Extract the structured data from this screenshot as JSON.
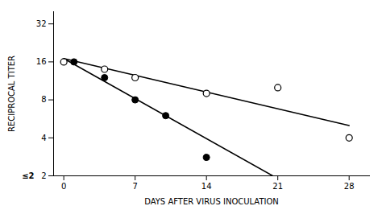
{
  "chart_data": {
    "type": "scatter",
    "xlabel": "DAYS AFTER VIRUS INOCULATION",
    "ylabel": "RECIPROCAL TITER",
    "log": "y",
    "grid": false,
    "xlim": [
      -1,
      30
    ],
    "ylim": [
      2,
      40
    ],
    "xticks": [
      0,
      7,
      14,
      21,
      28
    ],
    "yticks": [
      2,
      4,
      8,
      16,
      32
    ],
    "series": [
      {
        "type": "line",
        "color": "#000000",
        "x": [
          0,
          20.5
        ],
        "values": [
          17,
          2
        ]
      },
      {
        "type": "line",
        "color": "#000000",
        "x": [
          0,
          28
        ],
        "values": [
          17,
          5
        ]
      },
      {
        "type": "scatter",
        "marker": "filled_circle",
        "color": "#000000",
        "x": [
          1,
          4,
          7,
          10,
          14
        ],
        "values": [
          16,
          12,
          8,
          6,
          2.8
        ]
      },
      {
        "type": "scatter",
        "marker": "open_circle",
        "color": "#000000",
        "x": [
          0,
          4,
          7,
          14,
          21,
          28
        ],
        "values": [
          16,
          14,
          12,
          9,
          10,
          4
        ]
      }
    ],
    "annotations": [
      {
        "text": "≤2",
        "y": 2
      }
    ]
  }
}
